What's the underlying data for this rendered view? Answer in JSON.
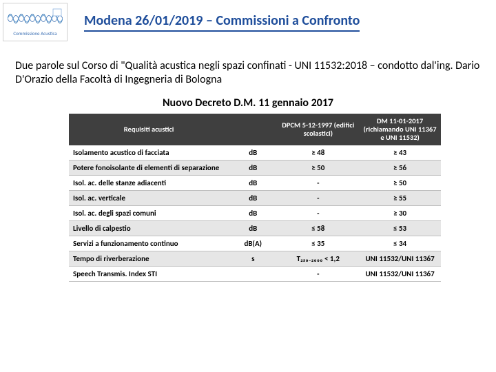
{
  "header": {
    "logo_caption": "Commissione Acustica",
    "title": "Modena 26/01/2019 – Commissioni a Confronto"
  },
  "intro": "Due parole sul Corso di \"Qualità acustica negli spazi confinati - UNI 11532:2018 – condotto dal'ing. Dario D'Orazio della Facoltà di Ingegneria di Bologna",
  "subtitle": "Nuovo Decreto D.M. 11 gennaio 2017",
  "table": {
    "columns": [
      "Requisiti acustici",
      "",
      "DPCM 5-12-1997 (edifici scolastici)",
      "DM 11-01-2017 (richiamando UNI 11367 e UNI 11532)"
    ],
    "rows": [
      [
        "Isolamento acustico di facciata",
        "dB",
        "≥ 48",
        "≥ 43"
      ],
      [
        "Potere fonoisolante di elementi di separazione",
        "dB",
        "≥ 50",
        "≥ 56"
      ],
      [
        "Isol. ac. delle stanze adiacenti",
        "dB",
        "-",
        "≥ 50"
      ],
      [
        "Isol. ac. verticale",
        "dB",
        "-",
        "≥ 55"
      ],
      [
        "Isol. ac. degli spazi comuni",
        "dB",
        "-",
        "≥ 30"
      ],
      [
        "Livello di calpestio",
        "dB",
        "≤ 58",
        "≤ 53"
      ],
      [
        "Servizi a funzionamento continuo",
        "dB(A)",
        "≤ 35",
        "≤ 34"
      ],
      [
        "Tempo di riverberazione",
        "s",
        "T₂₅₀₋₂₀₀₀ < 1,2",
        "UNI 11532/UNI 11367"
      ],
      [
        "Speech Transmis. Index STI",
        "",
        "-",
        "UNI 11532/UNI 11367"
      ]
    ]
  },
  "colors": {
    "title_color": "#1f4e9b",
    "table_header_bg": "#3f3f3f",
    "row_alt_bg": "#e6e6e6"
  }
}
